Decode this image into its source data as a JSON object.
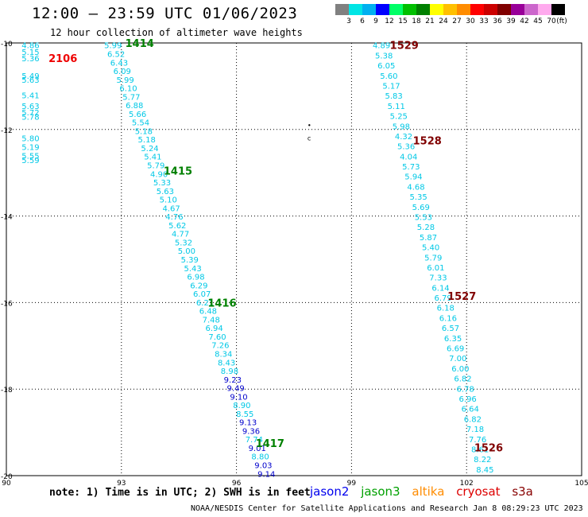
{
  "header": {
    "title": "12:00 – 23:59 UTC 01/06/2023",
    "subtitle": "12 hour collection of altimeter wave heights"
  },
  "footer": {
    "note": "note: 1) Time is in UTC; 2) SWH is in feet",
    "credit": "NOAA/NESDIS Center for Satellite Applications and Research   Jan  8 08:29:23 UTC 2023"
  },
  "satellites": [
    {
      "name": "jason2",
      "color": "#0000ee"
    },
    {
      "name": "jason3",
      "color": "#00a000"
    },
    {
      "name": "altika",
      "color": "#ff8c00"
    },
    {
      "name": "cryosat",
      "color": "#dd0000"
    },
    {
      "name": "s3a",
      "color": "#880000"
    }
  ],
  "colorbar": {
    "unit_label": "(ft)",
    "labels": [
      "3",
      "6",
      "9",
      "12",
      "15",
      "18",
      "21",
      "24",
      "27",
      "30",
      "33",
      "36",
      "39",
      "42",
      "45",
      "70"
    ],
    "colors": [
      "#808080",
      "#00e5e5",
      "#00b0f0",
      "#0000ff",
      "#00ff66",
      "#00c000",
      "#008000",
      "#ffff00",
      "#ffc000",
      "#ff8c00",
      "#ff0000",
      "#cc0000",
      "#800000",
      "#990099",
      "#cc66cc",
      "#ffaaee",
      "#000000"
    ]
  },
  "chart_data": {
    "type": "scatter",
    "title": "12:00 – 23:59 UTC 01/06/2023",
    "subtitle": "12 hour collection of altimeter wave heights",
    "xlim": [
      90,
      105
    ],
    "ylim": [
      -20,
      -10
    ],
    "xticks": [
      90,
      93,
      96,
      99,
      102,
      105
    ],
    "yticks": [
      -10,
      -12,
      -14,
      -16,
      -18,
      -20
    ],
    "grid": true,
    "color_thresholds": [
      {
        "max": 9,
        "color": "#00c8e6"
      },
      {
        "max": 12,
        "color": "#0000cc"
      }
    ],
    "time_labels": [
      {
        "text": "2106",
        "lon": 91.1,
        "lat": -10.35,
        "color": "#ee0000"
      },
      {
        "text": "1414",
        "lon": 93.1,
        "lat": -10.0,
        "color": "#008000"
      },
      {
        "text": "1415",
        "lon": 94.1,
        "lat": -12.95,
        "color": "#008000"
      },
      {
        "text": "1416",
        "lon": 95.25,
        "lat": -16.0,
        "color": "#008000"
      },
      {
        "text": "1417",
        "lon": 96.5,
        "lat": -19.25,
        "color": "#008000"
      },
      {
        "text": "1529",
        "lon": 100.0,
        "lat": -10.05,
        "color": "#800000"
      },
      {
        "text": "1528",
        "lon": 100.6,
        "lat": -12.25,
        "color": "#800000"
      },
      {
        "text": "1527",
        "lon": 101.5,
        "lat": -15.85,
        "color": "#800000"
      },
      {
        "text": "1526",
        "lon": 102.2,
        "lat": -19.35,
        "color": "#800000"
      }
    ],
    "tracks": [
      {
        "name": "track-2106",
        "lon_start": 90.4,
        "lon_end": 90.4,
        "lat_start": -10.05,
        "lat_end": -12.75,
        "values": [
          "4.86",
          "5.15",
          "5.36",
          "5.49",
          "5.63",
          "5.41",
          "5.63",
          "5.72",
          "5.78",
          "5.80",
          "5.19",
          "5.55",
          "5.59"
        ],
        "lats": [
          -10.05,
          -10.2,
          -10.35,
          -10.75,
          -10.85,
          -11.2,
          -11.45,
          -11.6,
          -11.7,
          -12.2,
          -12.4,
          -12.6,
          -12.7
        ]
      },
      {
        "name": "track-1414-1417",
        "lon_start": 92.55,
        "lon_end": 96.55,
        "lat_start": -10.05,
        "lat_end": -19.95,
        "values": [
          "5.99",
          "6.52",
          "6.43",
          "6.09",
          "5.99",
          "6.10",
          "5.77",
          "6.88",
          "5.66",
          "5.54",
          "5.18",
          "5.18",
          "5.24",
          "5.41",
          "5.79",
          "4.90",
          "5.33",
          "5.63",
          "5.10",
          "4.67",
          "4.76",
          "5.62",
          "4.77",
          "5.32",
          "5.00",
          "5.39",
          "5.43",
          "6.98",
          "6.29",
          "6.07",
          "6.21",
          "6.48",
          "7.48",
          "6.94",
          "7.60",
          "7.26",
          "8.34",
          "8.43",
          "8.98",
          "9.23",
          "9.49",
          "9.10",
          "8.90",
          "8.55",
          "9.13",
          "9.36",
          "7.74",
          "9.01",
          "8.80",
          "9.03",
          "9.14"
        ]
      },
      {
        "name": "track-1526-1529",
        "lon_start": 99.55,
        "lon_end": 102.25,
        "lat_start": -10.05,
        "lat_end": -19.85,
        "values": [
          "4.89",
          "5.38",
          "6.05",
          "5.60",
          "5.17",
          "5.83",
          "5.11",
          "5.25",
          "5.98",
          "4.32",
          "5.36",
          "4.04",
          "5.73",
          "5.94",
          "4.68",
          "5.35",
          "5.69",
          "5.53",
          "5.28",
          "5.87",
          "5.40",
          "5.79",
          "6.01",
          "7.33",
          "6.14",
          "6.79",
          "6.18",
          "6.16",
          "6.57",
          "6.35",
          "6.69",
          "7.00",
          "6.00",
          "6.82",
          "6.78",
          "6.96",
          "6.64",
          "6.82",
          "7.18",
          "7.76",
          "8.61",
          "8.22",
          "8.45"
        ]
      }
    ]
  }
}
